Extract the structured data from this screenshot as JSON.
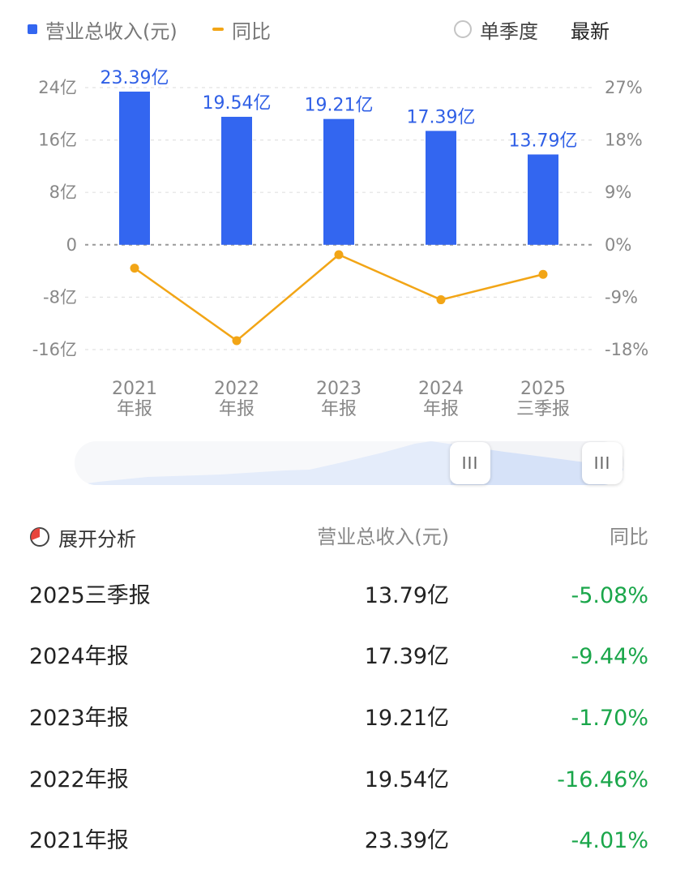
{
  "legend": {
    "bar_label": "营业总收入(元)",
    "line_label": "同比"
  },
  "options": {
    "single_quarter": "单季度",
    "latest": "最新"
  },
  "colors": {
    "bar": "#3366f0",
    "line": "#f2a516",
    "negative": "#1aa64a"
  },
  "chart_data": {
    "type": "bar",
    "categories": [
      [
        "2021",
        "年报"
      ],
      [
        "2022",
        "年报"
      ],
      [
        "2023",
        "年报"
      ],
      [
        "2024",
        "年报"
      ],
      [
        "2025",
        "三季报"
      ]
    ],
    "series": [
      {
        "name": "营业总收入(元)",
        "type": "bar",
        "axis": "left",
        "values": [
          23.39,
          19.54,
          19.21,
          17.39,
          13.79
        ],
        "labels": [
          "23.39亿",
          "19.54亿",
          "19.21亿",
          "17.39亿",
          "13.79亿"
        ]
      },
      {
        "name": "同比",
        "type": "line",
        "axis": "right",
        "values": [
          -4.01,
          -16.46,
          -1.7,
          -9.44,
          -5.08
        ]
      }
    ],
    "left_axis": {
      "ticks": [
        24,
        16,
        8,
        0,
        -8,
        -16
      ],
      "tick_labels": [
        "24亿",
        "16亿",
        "8亿",
        "0",
        "-8亿",
        "-16亿"
      ],
      "range": [
        -16,
        24
      ]
    },
    "right_axis": {
      "ticks": [
        27,
        18,
        9,
        0,
        -9,
        -18
      ],
      "tick_labels": [
        "27%",
        "18%",
        "9%",
        "0%",
        "-9%",
        "-18%"
      ],
      "range": [
        -18,
        27
      ]
    },
    "grid": true
  },
  "table": {
    "expand_label": "展开分析",
    "col_revenue": "营业总收入(元)",
    "col_yoy": "同比",
    "rows": [
      {
        "period": "2025三季报",
        "revenue": "13.79亿",
        "yoy": "-5.08%"
      },
      {
        "period": "2024年报",
        "revenue": "17.39亿",
        "yoy": "-9.44%"
      },
      {
        "period": "2023年报",
        "revenue": "19.21亿",
        "yoy": "-1.70%"
      },
      {
        "period": "2022年报",
        "revenue": "19.54亿",
        "yoy": "-16.46%"
      },
      {
        "period": "2021年报",
        "revenue": "23.39亿",
        "yoy": "-4.01%"
      }
    ]
  },
  "slider": {
    "handle_left": "III",
    "handle_right": "III"
  }
}
